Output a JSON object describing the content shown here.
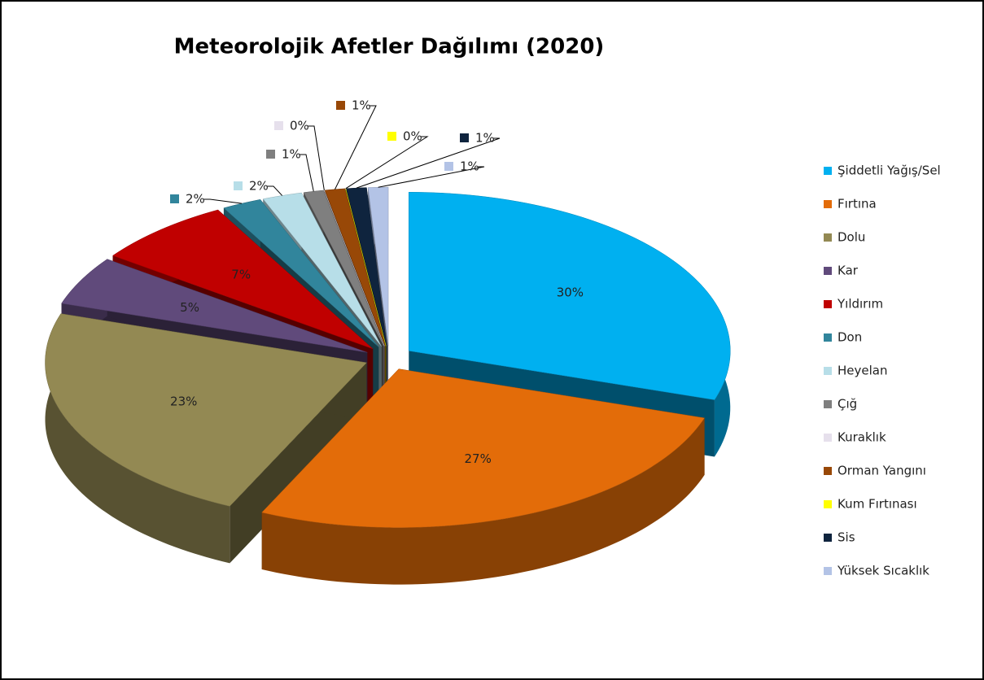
{
  "chart_data": {
    "type": "pie",
    "title": "Meteorolojik Afetler Dağılımı (2020)",
    "categories": [
      "Şiddetli Yağış/Sel",
      "Fırtına",
      "Dolu",
      "Kar",
      "Yıldırım",
      "Don",
      "Heyelan",
      "Çığ",
      "Kuraklık",
      "Orman Yangını",
      "Kum Fırtınası",
      "Sis",
      "Yüksek Sıcaklık"
    ],
    "values": [
      30,
      27,
      23,
      5,
      7,
      2,
      2,
      1,
      0,
      1,
      0,
      1,
      1
    ],
    "value_labels": [
      "30%",
      "27%",
      "23%",
      "5%",
      "7%",
      "2%",
      "2%",
      "1%",
      "0%",
      "1%",
      "0%",
      "1%",
      "1%"
    ],
    "colors": [
      "#00b0f0",
      "#e36c09",
      "#938953",
      "#604a7b",
      "#c00000",
      "#31859c",
      "#b7dee8",
      "#7f7f7f",
      "#e6e0ec",
      "#984807",
      "#ffff00",
      "#0f243e",
      "#b3c3e6"
    ],
    "legend": "right"
  }
}
